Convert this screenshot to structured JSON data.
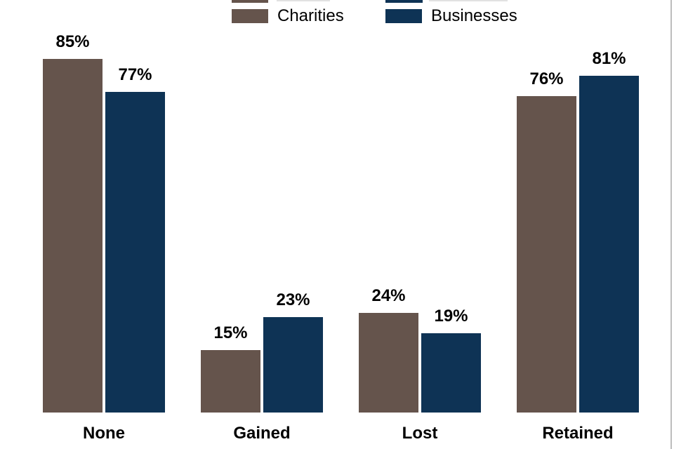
{
  "chart_data": {
    "type": "bar",
    "title": "",
    "xlabel": "",
    "ylabel": "",
    "categories": [
      "None",
      "Gained",
      "Lost",
      "Retained"
    ],
    "series": [
      {
        "name": "Charities",
        "color": "#65544C",
        "values": [
          85,
          15,
          24,
          76
        ]
      },
      {
        "name": "Businesses",
        "color": "#0E3355",
        "values": [
          77,
          23,
          19,
          81
        ]
      }
    ],
    "value_suffix": "%",
    "data_labels": [
      "85%",
      "77%",
      "15%",
      "23%",
      "24%",
      "19%",
      "76%",
      "81%"
    ],
    "ylim": [
      0,
      100
    ],
    "grid": false,
    "axis_lines": "none",
    "legend_position": "top"
  }
}
